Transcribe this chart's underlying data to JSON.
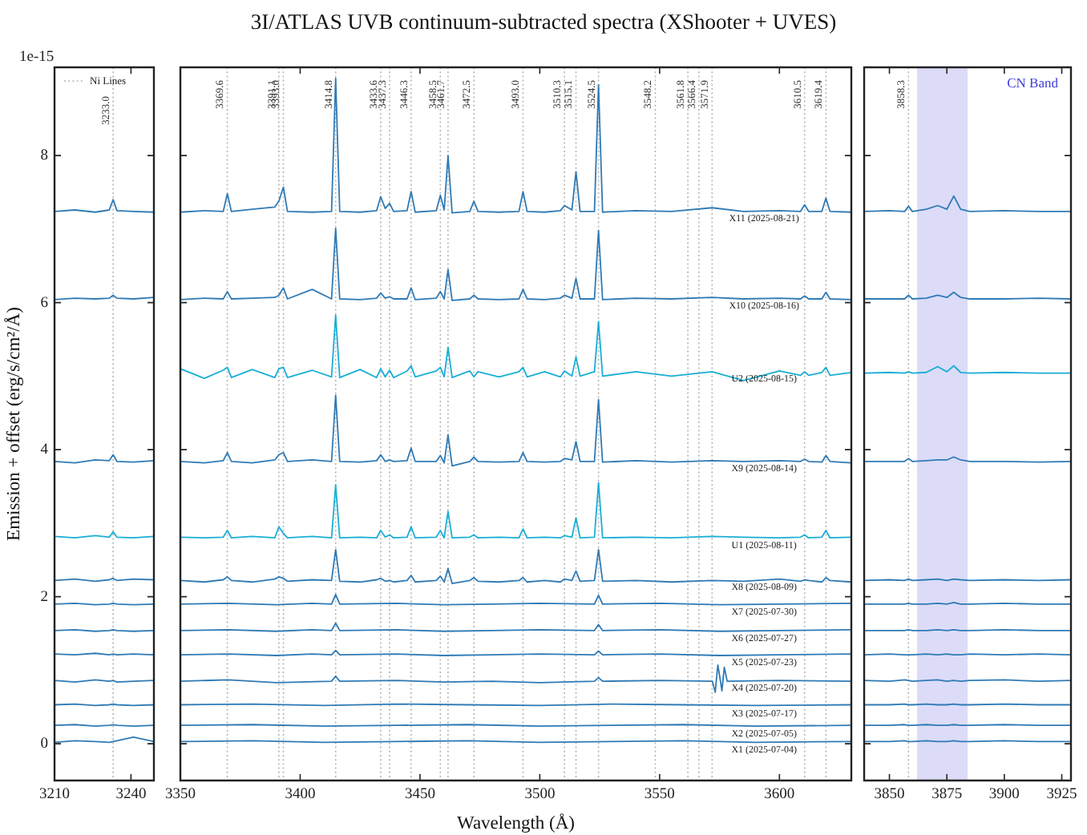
{
  "chart_data": [
    {
      "type": "line",
      "ylabel": "Emission + offset (erg/s/cm²/Å)",
      "xlim": [
        3210,
        3249
      ],
      "xticks": [
        3210,
        3240
      ],
      "ylim": [
        -0.5,
        9.2
      ],
      "yticks": [
        0,
        2,
        4,
        6,
        8
      ],
      "marker": "none",
      "annotations": [
        "1e-15",
        "Ni Lines"
      ],
      "ref_lines": [
        {
          "axis": "x",
          "value": 3233.0,
          "label": "3233.0",
          "color": "#b3b3b3",
          "line_style": "dotted"
        }
      ],
      "x": [
        3210,
        3218,
        3226,
        3231.5,
        3233,
        3234.5,
        3241,
        3249
      ],
      "series": [
        {
          "color": "#2f7ab5",
          "values": [
            7.24,
            7.26,
            7.23,
            7.26,
            7.4,
            7.25,
            7.24,
            7.23
          ]
        },
        {
          "color": "#2f7ab5",
          "values": [
            6.04,
            6.06,
            6.05,
            6.06,
            6.1,
            6.06,
            6.05,
            6.07
          ]
        },
        {
          "color": "#2f7ab5",
          "values": [
            3.84,
            3.82,
            3.86,
            3.85,
            3.93,
            3.84,
            3.83,
            3.85
          ]
        },
        {
          "color": "#19aed6",
          "values": [
            2.82,
            2.8,
            2.83,
            2.81,
            2.88,
            2.81,
            2.8,
            2.82
          ]
        },
        {
          "color": "#2f7ab5",
          "values": [
            2.22,
            2.24,
            2.21,
            2.23,
            2.25,
            2.22,
            2.24,
            2.23
          ]
        },
        {
          "color": "#2f7ab5",
          "values": [
            1.9,
            1.91,
            1.89,
            1.9,
            1.91,
            1.9,
            1.89,
            1.9
          ]
        },
        {
          "color": "#2f7ab5",
          "values": [
            1.54,
            1.55,
            1.53,
            1.54,
            1.55,
            1.54,
            1.53,
            1.54
          ]
        },
        {
          "color": "#2f7ab5",
          "values": [
            1.22,
            1.21,
            1.23,
            1.21,
            1.22,
            1.21,
            1.22,
            1.21
          ]
        },
        {
          "color": "#2f7ab5",
          "values": [
            0.86,
            0.84,
            0.87,
            0.85,
            0.86,
            0.84,
            0.85,
            0.86
          ]
        },
        {
          "color": "#2f7ab5",
          "values": [
            0.53,
            0.54,
            0.52,
            0.53,
            0.54,
            0.53,
            0.52,
            0.53
          ]
        },
        {
          "color": "#2f7ab5",
          "values": [
            0.25,
            0.26,
            0.24,
            0.25,
            0.26,
            0.25,
            0.24,
            0.25
          ]
        },
        {
          "color": "#2f7ab5",
          "values": [
            0.02,
            0.04,
            0.03,
            0.02,
            0.03,
            0.04,
            0.09,
            0.03
          ]
        }
      ]
    },
    {
      "type": "line",
      "title": "3I/ATLAS UVB continuum-subtracted spectra (XShooter + UVES)",
      "xlabel": "Wavelength (Å)",
      "xlim": [
        3350,
        3630
      ],
      "xticks": [
        3350,
        3400,
        3450,
        3500,
        3550,
        3600
      ],
      "ylim": [
        -0.5,
        9.2
      ],
      "yticks": [
        0,
        2,
        4,
        6,
        8
      ],
      "tick_labels": "x",
      "marker": "none",
      "ref_lines": [
        {
          "axis": "x",
          "value": 3369.6,
          "label": "3369.6",
          "color": "#b3b3b3",
          "line_style": "dotted"
        },
        {
          "axis": "x",
          "value": 3391.1,
          "label": "3391.1",
          "color": "#b3b3b3",
          "line_style": "dotted"
        },
        {
          "axis": "x",
          "value": 3393.0,
          "label": "3393.0",
          "color": "#b3b3b3",
          "line_style": "dotted"
        },
        {
          "axis": "x",
          "value": 3414.8,
          "label": "3414.8",
          "color": "#b3b3b3",
          "line_style": "dotted"
        },
        {
          "axis": "x",
          "value": 3433.6,
          "label": "3433.6",
          "color": "#b3b3b3",
          "line_style": "dotted"
        },
        {
          "axis": "x",
          "value": 3437.3,
          "label": "3437.3",
          "color": "#b3b3b3",
          "line_style": "dotted"
        },
        {
          "axis": "x",
          "value": 3446.3,
          "label": "3446.3",
          "color": "#b3b3b3",
          "line_style": "dotted"
        },
        {
          "axis": "x",
          "value": 3458.5,
          "label": "3458.5",
          "color": "#b3b3b3",
          "line_style": "dotted"
        },
        {
          "axis": "x",
          "value": 3461.7,
          "label": "3461.7",
          "color": "#b3b3b3",
          "line_style": "dotted"
        },
        {
          "axis": "x",
          "value": 3472.5,
          "label": "3472.5",
          "color": "#b3b3b3",
          "line_style": "dotted"
        },
        {
          "axis": "x",
          "value": 3493.0,
          "label": "3493.0",
          "color": "#b3b3b3",
          "line_style": "dotted"
        },
        {
          "axis": "x",
          "value": 3510.3,
          "label": "3510.3",
          "color": "#b3b3b3",
          "line_style": "dotted"
        },
        {
          "axis": "x",
          "value": 3515.1,
          "label": "3515.1",
          "color": "#b3b3b3",
          "line_style": "dotted"
        },
        {
          "axis": "x",
          "value": 3524.5,
          "label": "3524.5",
          "color": "#b3b3b3",
          "line_style": "dotted"
        },
        {
          "axis": "x",
          "value": 3548.2,
          "label": "3548.2",
          "color": "#b3b3b3",
          "line_style": "dotted"
        },
        {
          "axis": "x",
          "value": 3561.8,
          "label": "3561.8",
          "color": "#b3b3b3",
          "line_style": "dotted"
        },
        {
          "axis": "x",
          "value": 3566.4,
          "label": "3566.4",
          "color": "#b3b3b3",
          "line_style": "dotted"
        },
        {
          "axis": "x",
          "value": 3571.9,
          "label": "3571.9",
          "color": "#b3b3b3",
          "line_style": "dotted"
        },
        {
          "axis": "x",
          "value": 3610.5,
          "label": "3610.5",
          "color": "#b3b3b3",
          "line_style": "dotted"
        },
        {
          "axis": "x",
          "value": 3619.4,
          "label": "3619.4",
          "color": "#b3b3b3",
          "line_style": "dotted"
        }
      ],
      "x": [
        3350,
        3360,
        3367.9,
        3369.6,
        3371.3,
        3380,
        3389.4,
        3391.1,
        3393.0,
        3394.7,
        3405,
        3413.1,
        3414.8,
        3416.5,
        3425,
        3431.9,
        3433.6,
        3435.5,
        3437.3,
        3439,
        3444.6,
        3446.3,
        3448,
        3456.8,
        3458.5,
        3460.1,
        3461.7,
        3463.4,
        3470.8,
        3472.5,
        3474.2,
        3483,
        3491.3,
        3493.0,
        3494.7,
        3502,
        3508.6,
        3510.3,
        3513.4,
        3515.1,
        3516.8,
        3522.8,
        3524.5,
        3526.2,
        3540,
        3555,
        3571.9,
        3585,
        3600,
        3608.8,
        3610.5,
        3612.2,
        3617.7,
        3619.4,
        3621.1,
        3630
      ],
      "series": [
        {
          "name": "X11 (2025-08-21)",
          "color": "#2f7ab5",
          "values": [
            7.23,
            7.25,
            7.24,
            7.48,
            7.24,
            7.27,
            7.3,
            7.38,
            7.57,
            7.24,
            7.23,
            7.24,
            9.05,
            7.24,
            7.23,
            7.25,
            7.44,
            7.28,
            7.35,
            7.24,
            7.25,
            7.51,
            7.23,
            7.25,
            7.46,
            7.26,
            8.0,
            7.22,
            7.24,
            7.38,
            7.24,
            7.23,
            7.24,
            7.51,
            7.24,
            7.23,
            7.25,
            7.32,
            7.26,
            7.78,
            7.24,
            7.24,
            8.96,
            7.23,
            7.25,
            7.24,
            7.29,
            7.24,
            7.25,
            7.24,
            7.33,
            7.24,
            7.24,
            7.42,
            7.24,
            7.23
          ]
        },
        {
          "name": "X10 (2025-08-16)",
          "color": "#2f7ab5",
          "values": [
            6.04,
            6.06,
            6.05,
            6.15,
            6.05,
            6.06,
            6.07,
            6.1,
            6.2,
            6.05,
            6.18,
            6.05,
            7.01,
            6.05,
            6.04,
            6.06,
            6.13,
            6.06,
            6.08,
            6.05,
            6.05,
            6.2,
            6.04,
            6.06,
            6.15,
            6.05,
            6.45,
            6.03,
            6.05,
            6.1,
            6.05,
            6.04,
            6.05,
            6.18,
            6.05,
            6.04,
            6.06,
            6.1,
            6.06,
            6.33,
            6.05,
            6.05,
            6.98,
            6.04,
            6.06,
            6.05,
            6.07,
            6.05,
            6.06,
            6.05,
            6.09,
            6.05,
            6.05,
            6.14,
            6.05,
            6.04
          ]
        },
        {
          "name": "U2 (2025-08-15)",
          "color": "#19aed6",
          "values": [
            5.1,
            4.97,
            5.08,
            5.12,
            4.98,
            5.09,
            4.98,
            5.1,
            5.12,
            4.98,
            5.08,
            4.99,
            5.83,
            4.98,
            5.09,
            4.98,
            5.1,
            4.99,
            5.08,
            4.98,
            5.07,
            5.14,
            4.99,
            5.07,
            5.12,
            4.99,
            5.39,
            4.98,
            5.07,
            4.99,
            5.06,
            4.99,
            5.06,
            5.12,
            4.99,
            5.06,
            4.99,
            5.07,
            5.0,
            5.26,
            5.0,
            5.06,
            5.74,
            5.0,
            5.06,
            5.0,
            5.06,
            4.94,
            5.07,
            5.01,
            5.06,
            5.01,
            5.05,
            5.12,
            5.01,
            5.05
          ]
        },
        {
          "name": "X9 (2025-08-14)",
          "color": "#2f7ab5",
          "values": [
            3.84,
            3.82,
            3.85,
            3.96,
            3.84,
            3.82,
            3.86,
            3.93,
            3.96,
            3.84,
            3.86,
            3.84,
            4.74,
            3.84,
            3.83,
            3.85,
            3.93,
            3.84,
            3.86,
            3.84,
            3.85,
            4.02,
            3.84,
            3.84,
            3.92,
            3.82,
            4.2,
            3.78,
            3.84,
            3.9,
            3.84,
            3.83,
            3.84,
            3.96,
            3.84,
            3.83,
            3.84,
            3.88,
            3.86,
            4.11,
            3.84,
            3.84,
            4.68,
            3.83,
            3.85,
            3.83,
            3.85,
            3.84,
            3.85,
            3.84,
            3.87,
            3.84,
            3.83,
            3.92,
            3.84,
            3.82
          ]
        },
        {
          "name": "U1 (2025-08-11)",
          "color": "#19aed6",
          "values": [
            2.81,
            2.8,
            2.81,
            2.9,
            2.8,
            2.82,
            2.8,
            2.95,
            2.86,
            2.8,
            2.82,
            2.8,
            3.52,
            2.8,
            2.81,
            2.8,
            2.9,
            2.81,
            2.84,
            2.8,
            2.81,
            2.95,
            2.8,
            2.81,
            2.9,
            2.8,
            3.16,
            2.8,
            2.81,
            2.84,
            2.8,
            2.81,
            2.8,
            2.92,
            2.8,
            2.81,
            2.8,
            2.83,
            2.81,
            3.07,
            2.8,
            2.81,
            3.55,
            2.8,
            2.81,
            2.8,
            2.82,
            2.81,
            2.8,
            2.81,
            2.84,
            2.8,
            2.81,
            2.9,
            2.8,
            2.81
          ]
        },
        {
          "name": "X8 (2025-08-09)",
          "color": "#2f7ab5",
          "values": [
            2.22,
            2.2,
            2.23,
            2.27,
            2.22,
            2.2,
            2.24,
            2.27,
            2.25,
            2.21,
            2.23,
            2.22,
            2.64,
            2.21,
            2.2,
            2.23,
            2.25,
            2.21,
            2.22,
            2.2,
            2.22,
            2.29,
            2.2,
            2.22,
            2.28,
            2.2,
            2.38,
            2.18,
            2.22,
            2.26,
            2.21,
            2.2,
            2.22,
            2.26,
            2.2,
            2.22,
            2.2,
            2.24,
            2.22,
            2.35,
            2.21,
            2.22,
            2.64,
            2.21,
            2.22,
            2.2,
            2.22,
            2.21,
            2.24,
            2.21,
            2.23,
            2.22,
            2.2,
            2.26,
            2.22,
            2.2
          ]
        },
        {
          "name": "X7 (2025-07-30)",
          "color": "#2f7ab5",
          "x": [
            3350,
            3370,
            3390,
            3405,
            3413.1,
            3414.8,
            3416.5,
            3440,
            3460,
            3480,
            3500,
            3522.8,
            3524.5,
            3526.2,
            3550,
            3575,
            3600,
            3630
          ],
          "values": [
            1.9,
            1.91,
            1.89,
            1.91,
            1.9,
            2.03,
            1.9,
            1.91,
            1.89,
            1.9,
            1.91,
            1.9,
            2.02,
            1.9,
            1.91,
            1.89,
            1.9,
            1.91
          ]
        },
        {
          "name": "X6 (2025-07-27)",
          "color": "#2f7ab5",
          "x": [
            3350,
            3370,
            3390,
            3405,
            3413.1,
            3414.8,
            3416.5,
            3440,
            3460,
            3480,
            3500,
            3522.8,
            3524.5,
            3526.2,
            3550,
            3575,
            3600,
            3630
          ],
          "values": [
            1.54,
            1.55,
            1.53,
            1.55,
            1.54,
            1.64,
            1.54,
            1.55,
            1.53,
            1.54,
            1.55,
            1.54,
            1.62,
            1.54,
            1.55,
            1.53,
            1.54,
            1.55
          ]
        },
        {
          "name": "X5 (2025-07-23)",
          "color": "#2f7ab5",
          "x": [
            3350,
            3370,
            3390,
            3405,
            3413.1,
            3414.8,
            3416.5,
            3440,
            3460,
            3480,
            3500,
            3522.8,
            3524.5,
            3526.2,
            3550,
            3575,
            3600,
            3630
          ],
          "values": [
            1.21,
            1.22,
            1.2,
            1.22,
            1.21,
            1.27,
            1.21,
            1.22,
            1.2,
            1.21,
            1.22,
            1.21,
            1.26,
            1.21,
            1.22,
            1.2,
            1.21,
            1.22
          ]
        },
        {
          "name": "X4 (2025-07-20)",
          "color": "#2f7ab5",
          "x": [
            3350,
            3370,
            3390,
            3413.1,
            3414.8,
            3416.5,
            3440,
            3460,
            3480,
            3500,
            3522.8,
            3524.5,
            3526.2,
            3550,
            3572,
            3573.2,
            3574.3,
            3575.4,
            3576,
            3577,
            3578.2,
            3600,
            3630
          ],
          "values": [
            0.85,
            0.87,
            0.83,
            0.85,
            0.92,
            0.85,
            0.86,
            0.84,
            0.85,
            0.83,
            0.85,
            0.9,
            0.85,
            0.86,
            0.85,
            0.7,
            1.07,
            0.85,
            0.72,
            1.04,
            0.85,
            0.86,
            0.85
          ]
        },
        {
          "name": "X3 (2025-07-17)",
          "color": "#2f7ab5",
          "x": [
            3350,
            3380,
            3410,
            3440,
            3470,
            3500,
            3530,
            3560,
            3590,
            3630
          ],
          "values": [
            0.53,
            0.54,
            0.52,
            0.54,
            0.53,
            0.52,
            0.54,
            0.53,
            0.52,
            0.53
          ]
        },
        {
          "name": "X2 (2025-07-05)",
          "color": "#2f7ab5",
          "x": [
            3350,
            3380,
            3410,
            3440,
            3470,
            3500,
            3530,
            3560,
            3590,
            3630
          ],
          "values": [
            0.25,
            0.26,
            0.24,
            0.25,
            0.26,
            0.24,
            0.25,
            0.26,
            0.24,
            0.25
          ]
        },
        {
          "name": "X1 (2025-07-04)",
          "color": "#2f7ab5",
          "x": [
            3350,
            3380,
            3410,
            3440,
            3470,
            3500,
            3530,
            3560,
            3590,
            3630
          ],
          "values": [
            0.03,
            0.04,
            0.02,
            0.03,
            0.04,
            0.02,
            0.03,
            0.04,
            0.02,
            0.03
          ]
        }
      ]
    },
    {
      "type": "line",
      "xlim": [
        3839,
        3929
      ],
      "xticks": [
        3850,
        3875,
        3900,
        3925
      ],
      "ylim": [
        -0.5,
        9.2
      ],
      "yticks": [
        0,
        2,
        4,
        6,
        8
      ],
      "tick_labels": "x",
      "marker": "none",
      "ref_lines": [
        {
          "axis": "x",
          "value": 3858.3,
          "label": "3858.3",
          "color": "#b3b3b3",
          "line_style": "dotted"
        }
      ],
      "bands": [
        {
          "axis": "x",
          "from": 3862,
          "to": 3884,
          "label": "CN Band",
          "color": "#dcdcf8"
        }
      ],
      "x": [
        3839,
        3850,
        3856.6,
        3858.3,
        3860,
        3866,
        3871,
        3875,
        3878,
        3881,
        3885,
        3900,
        3915,
        3929
      ],
      "series": [
        {
          "color": "#2f7ab5",
          "values": [
            7.24,
            7.25,
            7.24,
            7.31,
            7.24,
            7.27,
            7.32,
            7.27,
            7.45,
            7.27,
            7.24,
            7.25,
            7.24,
            7.24
          ]
        },
        {
          "color": "#2f7ab5",
          "values": [
            6.05,
            6.05,
            6.05,
            6.1,
            6.05,
            6.06,
            6.1,
            6.07,
            6.14,
            6.07,
            6.05,
            6.05,
            6.06,
            6.05
          ]
        },
        {
          "color": "#19aed6",
          "values": [
            5.04,
            5.05,
            5.04,
            5.06,
            5.04,
            5.05,
            5.13,
            5.06,
            5.14,
            5.05,
            5.04,
            5.05,
            5.04,
            5.04
          ]
        },
        {
          "color": "#2f7ab5",
          "values": [
            3.84,
            3.84,
            3.84,
            3.88,
            3.84,
            3.85,
            3.86,
            3.86,
            3.9,
            3.86,
            3.84,
            3.84,
            3.83,
            3.84
          ]
        },
        {
          "color": "#2f7ab5",
          "values": [
            2.22,
            2.23,
            2.22,
            2.24,
            2.22,
            2.23,
            2.24,
            2.22,
            2.24,
            2.23,
            2.22,
            2.23,
            2.22,
            2.23
          ]
        },
        {
          "color": "#2f7ab5",
          "values": [
            1.9,
            1.9,
            1.9,
            1.91,
            1.9,
            1.9,
            1.91,
            1.9,
            1.92,
            1.9,
            1.9,
            1.91,
            1.9,
            1.9
          ]
        },
        {
          "color": "#2f7ab5",
          "values": [
            1.54,
            1.54,
            1.54,
            1.55,
            1.54,
            1.54,
            1.55,
            1.54,
            1.55,
            1.54,
            1.54,
            1.55,
            1.54,
            1.54
          ]
        },
        {
          "color": "#2f7ab5",
          "values": [
            1.21,
            1.22,
            1.21,
            1.21,
            1.21,
            1.22,
            1.21,
            1.22,
            1.21,
            1.21,
            1.22,
            1.21,
            1.22,
            1.21
          ]
        },
        {
          "color": "#2f7ab5",
          "values": [
            0.86,
            0.85,
            0.87,
            0.86,
            0.85,
            0.86,
            0.87,
            0.85,
            0.86,
            0.85,
            0.86,
            0.87,
            0.85,
            0.86
          ]
        },
        {
          "color": "#2f7ab5",
          "values": [
            0.53,
            0.53,
            0.54,
            0.53,
            0.53,
            0.54,
            0.53,
            0.53,
            0.54,
            0.53,
            0.53,
            0.54,
            0.53,
            0.53
          ]
        },
        {
          "color": "#2f7ab5",
          "values": [
            0.25,
            0.25,
            0.26,
            0.25,
            0.25,
            0.26,
            0.25,
            0.25,
            0.26,
            0.25,
            0.25,
            0.26,
            0.25,
            0.25
          ]
        },
        {
          "color": "#2f7ab5",
          "values": [
            0.03,
            0.03,
            0.04,
            0.03,
            0.03,
            0.04,
            0.03,
            0.03,
            0.04,
            0.03,
            0.03,
            0.04,
            0.03,
            0.03
          ]
        }
      ]
    }
  ]
}
